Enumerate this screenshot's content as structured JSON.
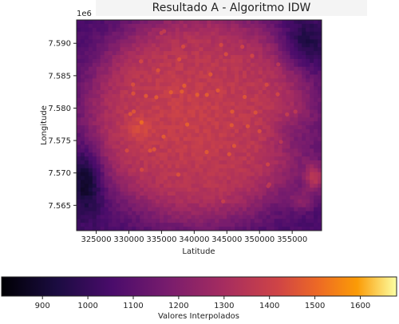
{
  "chart_data": {
    "type": "heatmap",
    "title": "Resultado A - Algoritmo IDW",
    "xlabel": "Latitude",
    "ylabel": "Longitude",
    "y_offset_label": "1e6",
    "xlim": [
      322000,
      359500
    ],
    "ylim": [
      7.5611,
      7.5936
    ],
    "x_ticks": [
      325000,
      330000,
      335000,
      340000,
      345000,
      350000,
      355000
    ],
    "x_tick_labels": [
      "325000",
      "330000",
      "335000",
      "340000",
      "345000",
      "350000",
      "355000"
    ],
    "y_ticks": [
      7.565,
      7.57,
      7.575,
      7.58,
      7.585,
      7.59
    ],
    "y_tick_labels": [
      "7.565",
      "7.570",
      "7.575",
      "7.580",
      "7.585",
      "7.590"
    ],
    "colormap": "inferno",
    "colorbar": {
      "label": "Valores Interpolados",
      "range": [
        810,
        1680
      ],
      "ticks": [
        900,
        1000,
        1100,
        1200,
        1300,
        1400,
        1500,
        1600
      ],
      "tick_labels": [
        "900",
        "1000",
        "1100",
        "1200",
        "1300",
        "1400",
        "1500",
        "1600"
      ],
      "orientation": "horizontal"
    },
    "grid": false
  }
}
